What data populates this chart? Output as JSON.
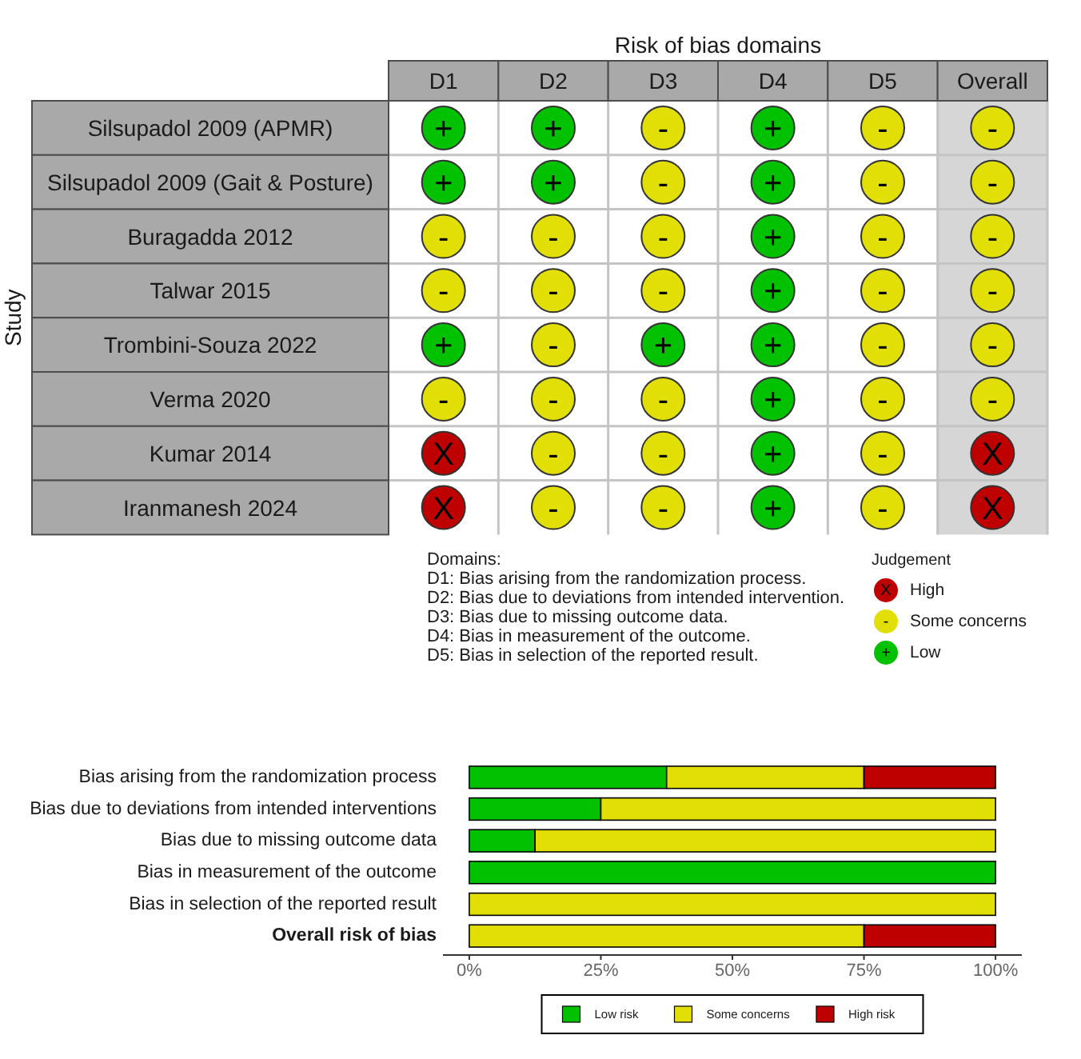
{
  "chart_data": [
    {
      "type": "heatmap",
      "title": "Risk of bias domains",
      "ylabel": "Study",
      "categories": [
        "D1",
        "D2",
        "D3",
        "D4",
        "D5",
        "Overall"
      ],
      "y_categories": [
        "Silsupadol 2009 (APMR)",
        "Silsupadol 2009 (Gait & Posture)",
        "Buragadda 2012",
        "Talwar 2015",
        "Trombini-Souza 2022",
        "Verma 2020",
        "Kumar 2014",
        "Iranmanesh 2024"
      ],
      "cells": [
        [
          "+",
          "+",
          "-",
          "+",
          "-",
          "-"
        ],
        [
          "+",
          "+",
          "-",
          "+",
          "-",
          "-"
        ],
        [
          "-",
          "-",
          "-",
          "+",
          "-",
          "-"
        ],
        [
          "-",
          "-",
          "-",
          "+",
          "-",
          "-"
        ],
        [
          "+",
          "-",
          "+",
          "+",
          "-",
          "-"
        ],
        [
          "-",
          "-",
          "-",
          "+",
          "-",
          "-"
        ],
        [
          "X",
          "-",
          "-",
          "+",
          "-",
          "X"
        ],
        [
          "X",
          "-",
          "-",
          "+",
          "-",
          "X"
        ]
      ],
      "clabel": "Judgement",
      "cticks": [
        {
          "value": "X",
          "label": "High"
        },
        {
          "value": "-",
          "label": "Some concerns"
        },
        {
          "value": "+",
          "label": "Low"
        }
      ],
      "colors": [
        "#bf0000",
        "#e2df07",
        "#02c100"
      ],
      "annotations": [
        "Domains:",
        "D1: Bias arising from the randomization process.",
        "D2: Bias due to deviations from intended intervention.",
        "D3: Bias due to missing outcome data.",
        "D4: Bias in measurement of the outcome.",
        "D5: Bias in selection of the reported result."
      ]
    },
    {
      "type": "bar",
      "orientation": "horizontal",
      "stacked": true,
      "categories": [
        "Bias arising from the randomization process",
        "Bias due to deviations from intended interventions",
        "Bias due to missing outcome data",
        "Bias in measurement of the outcome",
        "Bias in selection of the reported result",
        "Overall risk of bias"
      ],
      "series": [
        {
          "name": "Low risk",
          "color": "#02c100",
          "values": [
            37.5,
            25,
            12.5,
            100,
            null,
            null
          ]
        },
        {
          "name": "Some concerns",
          "color": "#e2df07",
          "values": [
            37.5,
            75,
            87.5,
            null,
            100,
            75
          ]
        },
        {
          "name": "High risk",
          "color": "#bf0000",
          "values": [
            25,
            null,
            null,
            null,
            null,
            25
          ]
        }
      ],
      "xlim": [
        -5,
        105
      ],
      "xticks": [
        {
          "value": 0,
          "label": "0%"
        },
        {
          "value": 25,
          "label": "25%"
        },
        {
          "value": 50,
          "label": "50%"
        },
        {
          "value": 75,
          "label": "75%"
        },
        {
          "value": 100,
          "label": "100%"
        }
      ],
      "legend": "bottom"
    }
  ]
}
